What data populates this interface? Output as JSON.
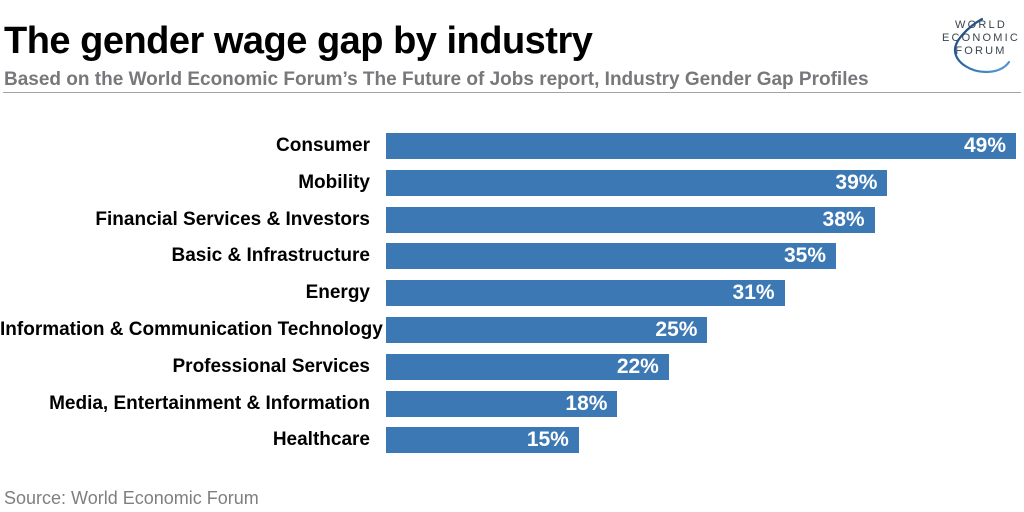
{
  "header": {
    "title": "The gender wage gap by industry",
    "subtitle": "Based on the World Economic Forum’s The Future of Jobs report, Industry Gender Gap Profiles"
  },
  "logo": {
    "lines": [
      "WORLD",
      "ECONOMIC",
      "FORUM"
    ]
  },
  "chart_data": {
    "type": "bar",
    "orientation": "horizontal",
    "title": "The gender wage gap by industry",
    "subtitle": "Based on the World Economic Forum’s The Future of Jobs report, Industry Gender Gap Profiles",
    "categories": [
      "Consumer",
      "Mobility",
      "Financial Services & Investors",
      "Basic & Infrastructure",
      "Energy",
      "Information & Communication Technology",
      "Professional Services",
      "Media, Entertainment & Information",
      "Healthcare"
    ],
    "values": [
      49,
      39,
      38,
      35,
      31,
      25,
      22,
      18,
      15
    ],
    "value_suffix": "%",
    "value_labels": [
      "49%",
      "39%",
      "38%",
      "35%",
      "31%",
      "25%",
      "22%",
      "18%",
      "15%"
    ],
    "xlim": [
      0,
      49
    ],
    "bar_color": "#3c78b4",
    "value_label_color": "#ffffff",
    "grid": false,
    "legend": false,
    "source": "Source: World Economic Forum"
  },
  "footer": {
    "source": "Source: World Economic Forum"
  },
  "colors": {
    "bar": "#3c78b4",
    "title": "#000000",
    "subtitle_gray": "#77787b",
    "source_gray": "#7f7f7f",
    "divider_gray": "#a3a3a3",
    "logo_text": "#39444e",
    "logo_arc_dark": "#1c3e6e",
    "logo_arc_light": "#5ea0d8"
  }
}
